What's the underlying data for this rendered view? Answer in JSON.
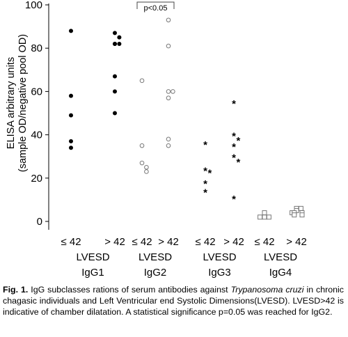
{
  "chart_data": {
    "type": "scatter",
    "ylabel_line1": "ELISA arbitrary units",
    "ylabel_line2": "(sample OD/negative pool OD)",
    "ylim": [
      0,
      100
    ],
    "yticks": [
      0,
      20,
      40,
      60,
      80,
      100
    ],
    "grid": false,
    "legend": "none",
    "x_labels": [
      "≤ 42",
      "> 42",
      "≤ 42",
      "> 42",
      "≤ 42",
      "> 42",
      "≤ 42",
      "> 42"
    ],
    "group_axis_label": "LVESD",
    "subclasses": [
      "IgG1",
      "IgG2",
      "IgG3",
      "IgG4"
    ],
    "significance": {
      "label": "p<0.05",
      "between": [
        2,
        3
      ]
    },
    "series": [
      {
        "group": 0,
        "marker": "filled-circle",
        "values": [
          88,
          58,
          49,
          37,
          34
        ]
      },
      {
        "group": 1,
        "marker": "filled-circle",
        "values": [
          87,
          85,
          82,
          82,
          82,
          67,
          60,
          50
        ]
      },
      {
        "group": 2,
        "marker": "open-circle",
        "values": [
          65,
          35,
          27,
          25,
          23
        ]
      },
      {
        "group": 3,
        "marker": "open-circle",
        "values": [
          93,
          81,
          60,
          60,
          57,
          38,
          35
        ]
      },
      {
        "group": 4,
        "marker": "star",
        "values": [
          36,
          24,
          23,
          18,
          14
        ]
      },
      {
        "group": 5,
        "marker": "star",
        "values": [
          55,
          40,
          38,
          35,
          30,
          28,
          11
        ]
      },
      {
        "group": 6,
        "marker": "open-square",
        "values": [
          4,
          2,
          2,
          2
        ]
      },
      {
        "group": 7,
        "marker": "open-square",
        "values": [
          6,
          6,
          5,
          4,
          4,
          4,
          3,
          3
        ]
      }
    ]
  },
  "caption": {
    "fig_label": "Fig. 1.",
    "text_before_italic": " IgG subclasses rations of serum antibodies against ",
    "italic_text": "Trypanosoma cruzi",
    "text_after_italic": " in chronic chagasic individuals and Left Ventricular end Systolic Dimensions(LVESD). LVESD>42 is indicative of chamber dilatation. A statistical significance p=0.05 was reached for IgG2."
  }
}
